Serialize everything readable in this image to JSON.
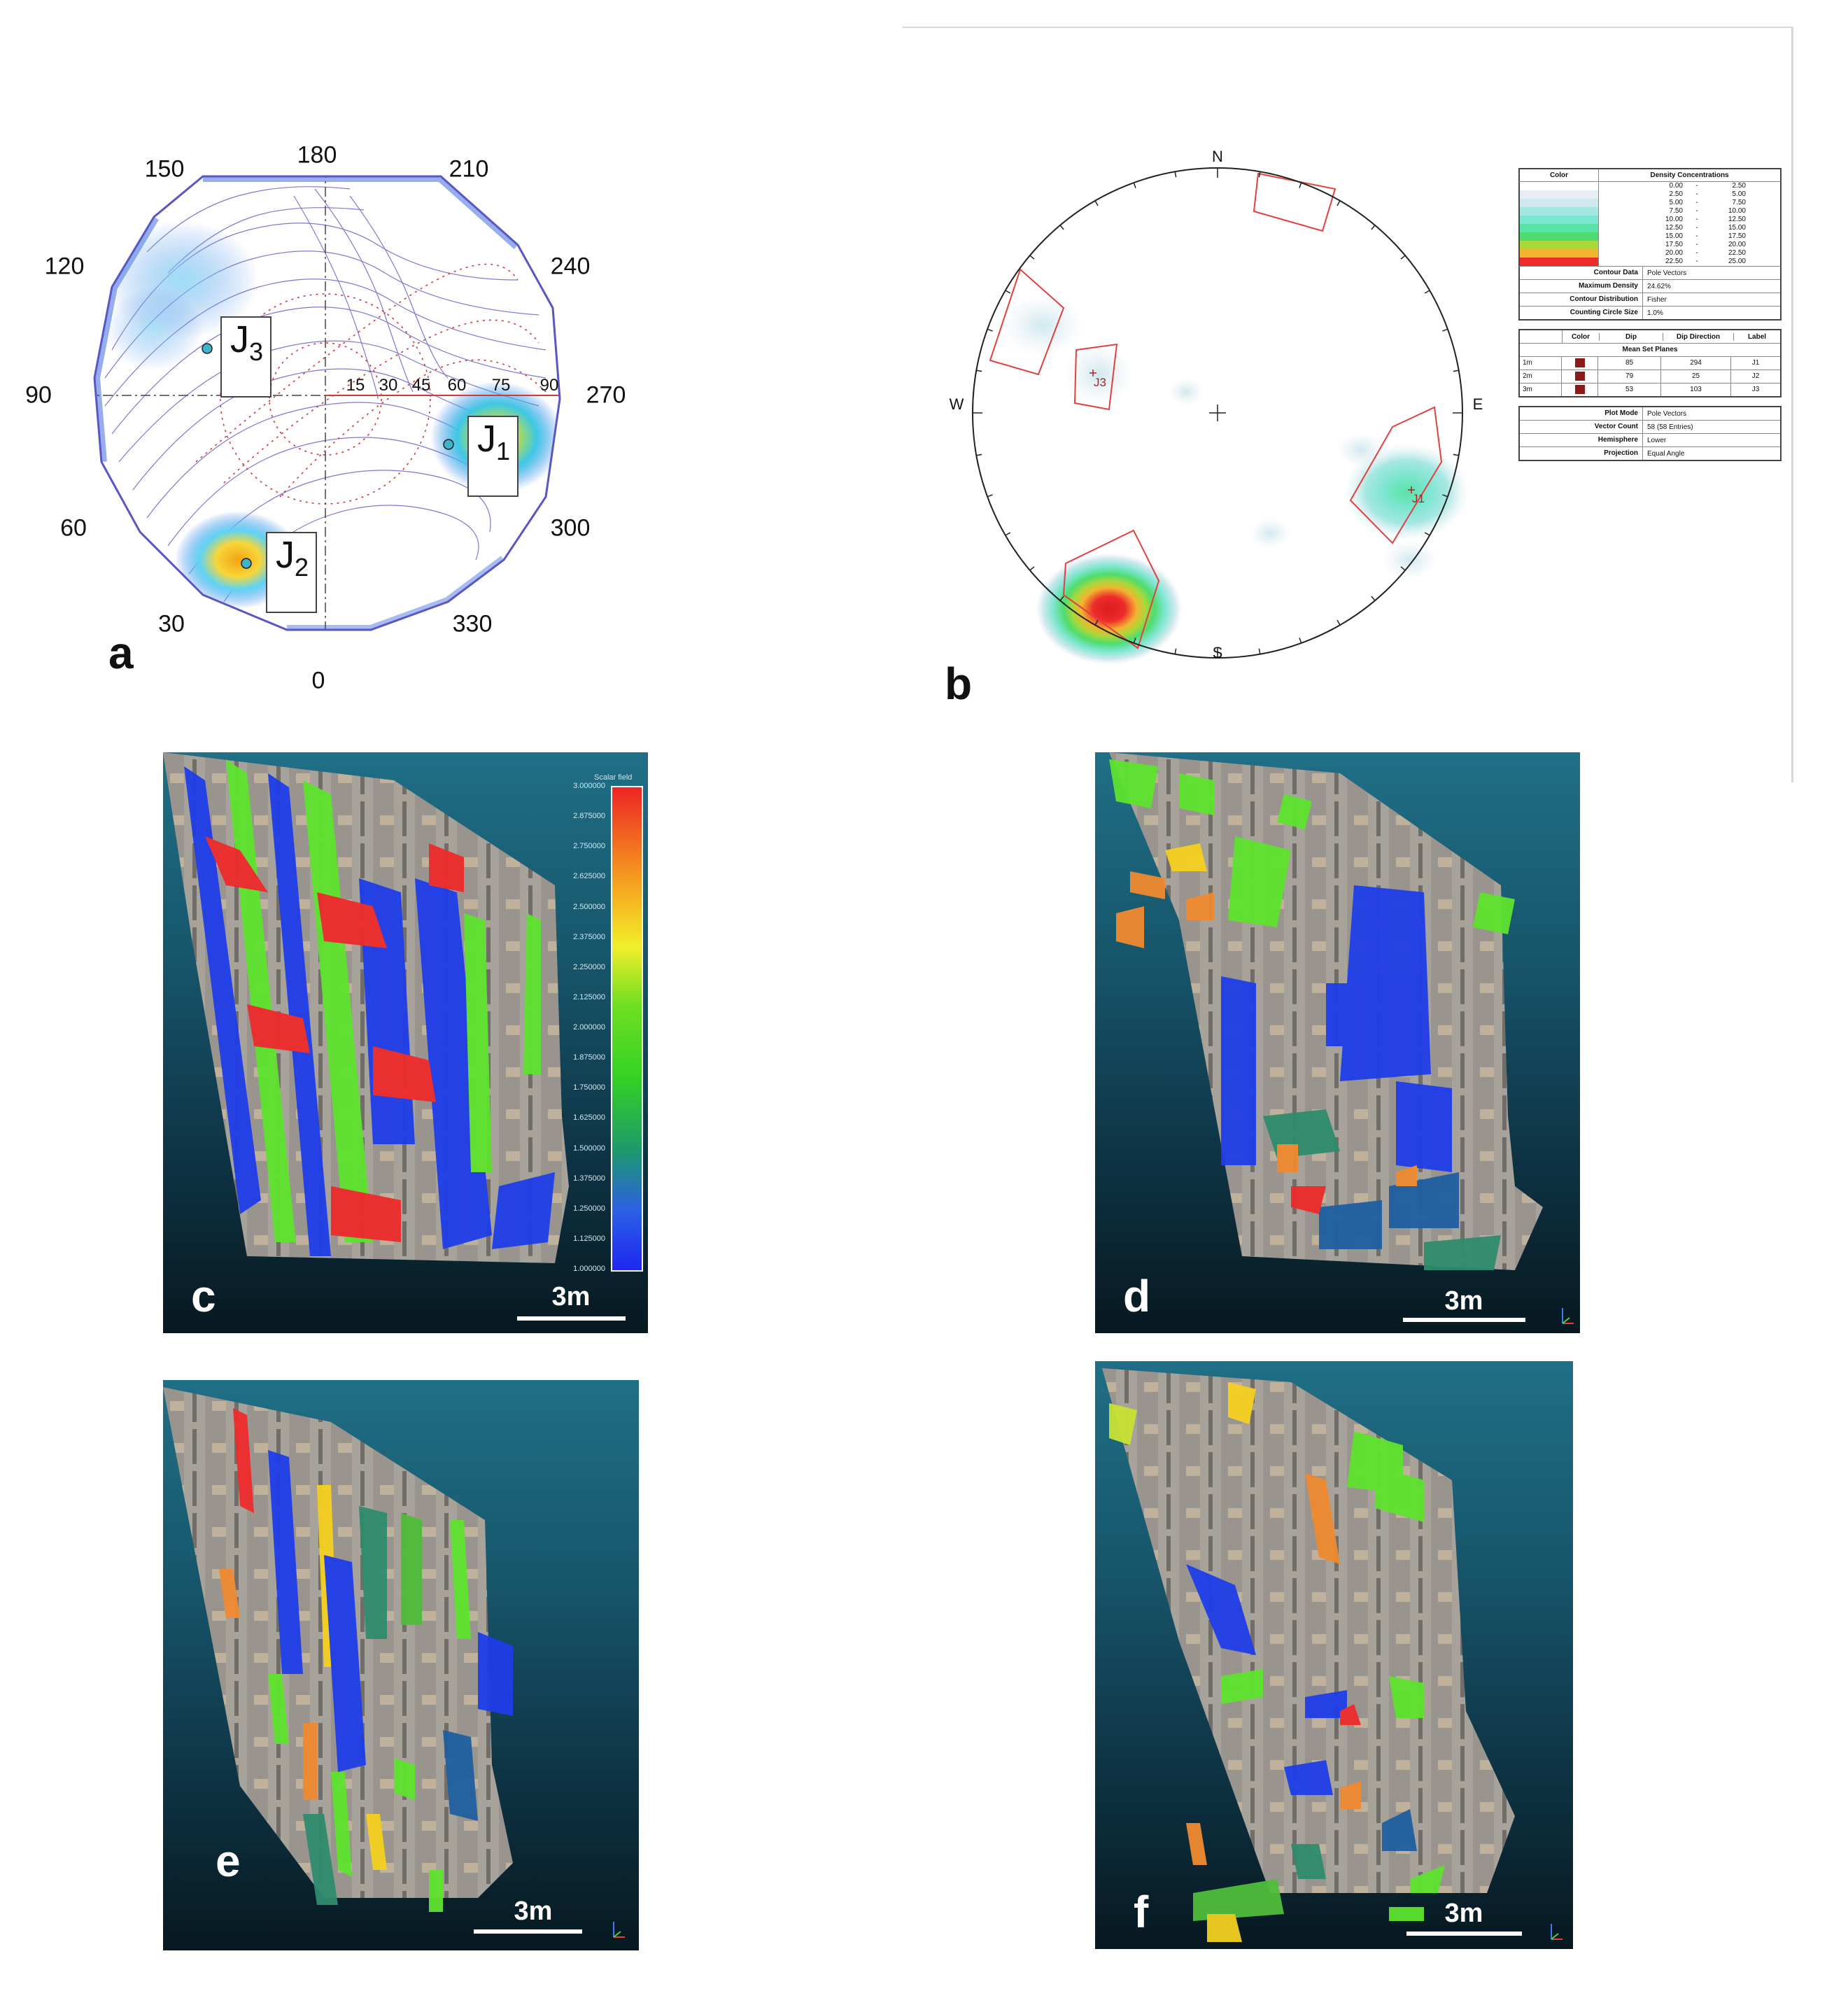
{
  "panels": {
    "a": {
      "letter": "a",
      "azimuth_labels": {
        "top": "180",
        "top_left": "150",
        "top_right": "210",
        "upper_left": "120",
        "upper_right": "240",
        "left": "90",
        "right": "270",
        "lower_left": "60",
        "lower_right": "300",
        "bottom_left": "30",
        "bottom_right": "330",
        "bottom": "0"
      },
      "dip_labels": [
        "15",
        "30",
        "45",
        "60",
        "75",
        "90"
      ],
      "sets": [
        {
          "main": "J",
          "sub": "1"
        },
        {
          "main": "J",
          "sub": "2"
        },
        {
          "main": "J",
          "sub": "3"
        }
      ]
    },
    "b": {
      "letter": "b",
      "compass": {
        "n": "N",
        "s": "S",
        "e": "E",
        "w": "W"
      },
      "set_labels": [
        "J3",
        "J1"
      ],
      "legend": {
        "header": {
          "color": "Color",
          "title": "Density Concentrations"
        },
        "density_bins": [
          {
            "from": "0.00",
            "to": "2.50",
            "color": "#ffffff"
          },
          {
            "from": "2.50",
            "to": "5.00",
            "color": "#e6edf3"
          },
          {
            "from": "5.00",
            "to": "7.50",
            "color": "#cfe9ee"
          },
          {
            "from": "7.50",
            "to": "10.00",
            "color": "#a6e7e3"
          },
          {
            "from": "10.00",
            "to": "12.50",
            "color": "#7de6cf"
          },
          {
            "from": "12.50",
            "to": "15.00",
            "color": "#59e3a8"
          },
          {
            "from": "15.00",
            "to": "17.50",
            "color": "#4fdc6e"
          },
          {
            "from": "17.50",
            "to": "20.00",
            "color": "#a8d83a"
          },
          {
            "from": "20.00",
            "to": "22.50",
            "color": "#f2b531"
          },
          {
            "from": "22.50",
            "to": "25.00",
            "color": "#ee2b2b"
          }
        ],
        "dash": "-",
        "contour_rows": [
          {
            "label": "Contour Data",
            "value": "Pole Vectors"
          },
          {
            "label": "Maximum Density",
            "value": "24.62%"
          },
          {
            "label": "Contour Distribution",
            "value": "Fisher"
          },
          {
            "label": "Counting Circle Size",
            "value": "1.0%"
          }
        ],
        "set_table": {
          "headers": [
            "Color",
            "Dip",
            "Dip Direction",
            "Label"
          ],
          "title": "Mean Set Planes",
          "rows": [
            {
              "id": "1m",
              "dip": "85",
              "dipdir": "294",
              "label": "J1"
            },
            {
              "id": "2m",
              "dip": "79",
              "dipdir": "25",
              "label": "J2"
            },
            {
              "id": "3m",
              "dip": "53",
              "dipdir": "103",
              "label": "J3"
            }
          ],
          "swatch_color": "#8b1a1a"
        },
        "plot_rows": [
          {
            "label": "Plot Mode",
            "value": "Pole Vectors"
          },
          {
            "label": "Vector Count",
            "value": "58 (58 Entries)"
          },
          {
            "label": "Hemisphere",
            "value": "Lower"
          },
          {
            "label": "Projection",
            "value": "Equal Angle"
          }
        ]
      }
    },
    "c": {
      "letter": "c",
      "scale_label": "3m",
      "colorbar_title": "Scalar field",
      "colorbar_ticks": [
        "3.000000",
        "2.875000",
        "2.750000",
        "2.625000",
        "2.500000",
        "2.375000",
        "2.250000",
        "2.125000",
        "2.000000",
        "1.875000",
        "1.750000",
        "1.625000",
        "1.500000",
        "1.375000",
        "1.250000",
        "1.125000",
        "1.000000"
      ]
    },
    "d": {
      "letter": "d",
      "scale_label": "3m"
    },
    "e": {
      "letter": "e",
      "scale_label": "3m"
    },
    "f": {
      "letter": "f",
      "scale_label": "3m"
    }
  }
}
